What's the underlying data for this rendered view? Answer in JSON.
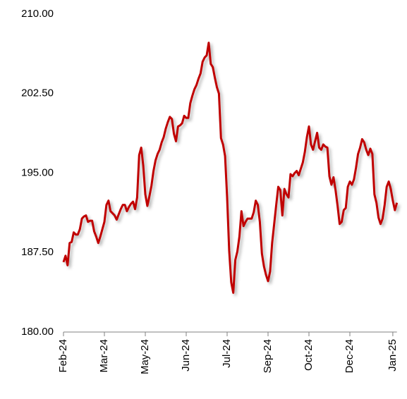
{
  "chart_data": {
    "type": "line",
    "categories": [
      "Feb-24",
      null,
      null,
      null,
      null,
      null,
      null,
      null,
      null,
      null,
      null,
      null,
      null,
      null,
      null,
      null,
      null,
      null,
      null,
      null,
      "Mar-24",
      null,
      null,
      null,
      null,
      null,
      null,
      null,
      null,
      null,
      null,
      null,
      null,
      null,
      null,
      null,
      null,
      null,
      null,
      null,
      "May-24",
      null,
      null,
      null,
      null,
      null,
      null,
      null,
      null,
      null,
      null,
      null,
      null,
      null,
      null,
      null,
      null,
      null,
      null,
      null,
      "Jun-24",
      null,
      null,
      null,
      null,
      null,
      null,
      null,
      null,
      null,
      null,
      null,
      null,
      null,
      null,
      null,
      null,
      null,
      null,
      null,
      "Jul-24",
      null,
      null,
      null,
      null,
      null,
      null,
      null,
      null,
      null,
      null,
      null,
      null,
      null,
      null,
      null,
      null,
      null,
      null,
      null,
      "Sep-24",
      null,
      null,
      null,
      null,
      null,
      null,
      null,
      null,
      null,
      null,
      null,
      null,
      null,
      null,
      null,
      null,
      null,
      null,
      null,
      "Oct-24",
      null,
      null,
      null,
      null,
      null,
      null,
      null,
      null,
      null,
      null,
      null,
      null,
      null,
      null,
      null,
      null,
      null,
      null,
      null,
      "Dec-24",
      null,
      null,
      null,
      null,
      null,
      null,
      null,
      null,
      null,
      null,
      null,
      null,
      null,
      null,
      null,
      null,
      null,
      null,
      null,
      null,
      "Jan-25",
      null,
      null
    ],
    "values": [
      186.6,
      187.2,
      186.3,
      188.4,
      188.5,
      189.4,
      189.2,
      189.2,
      189.7,
      190.7,
      190.9,
      191.0,
      190.4,
      190.5,
      190.5,
      189.5,
      189.0,
      188.4,
      189.0,
      189.7,
      190.4,
      192.0,
      192.4,
      191.4,
      191.2,
      191.0,
      190.6,
      191.1,
      191.6,
      192.0,
      192.0,
      191.4,
      191.8,
      192.1,
      192.3,
      191.6,
      192.7,
      196.7,
      197.4,
      195.7,
      193.0,
      191.9,
      192.8,
      193.8,
      195.2,
      196.2,
      196.8,
      197.2,
      197.9,
      198.4,
      199.2,
      199.8,
      200.3,
      200.1,
      198.7,
      198.0,
      199.4,
      199.5,
      199.7,
      200.4,
      200.2,
      200.2,
      201.6,
      202.3,
      202.9,
      203.3,
      203.9,
      204.4,
      205.5,
      205.9,
      206.1,
      207.3,
      205.3,
      205.0,
      204.0,
      203.1,
      202.5,
      198.3,
      197.7,
      196.6,
      192.7,
      187.7,
      184.7,
      183.7,
      186.8,
      187.6,
      189.0,
      191.4,
      190.0,
      190.4,
      190.7,
      190.7,
      190.7,
      191.3,
      192.4,
      192.0,
      190.4,
      187.4,
      186.2,
      185.4,
      184.8,
      185.7,
      188.4,
      190.2,
      192.0,
      193.7,
      193.4,
      191.0,
      193.5,
      193.0,
      192.7,
      194.9,
      194.7,
      195.0,
      195.2,
      194.8,
      195.4,
      196.0,
      197.0,
      198.4,
      199.4,
      197.7,
      197.2,
      198.0,
      198.8,
      197.4,
      197.2,
      197.7,
      197.5,
      197.4,
      194.7,
      193.9,
      194.6,
      193.4,
      191.9,
      190.2,
      190.4,
      191.5,
      191.7,
      193.7,
      194.2,
      193.9,
      194.4,
      195.5,
      196.8,
      197.4,
      198.2,
      197.9,
      197.2,
      196.7,
      197.3,
      196.8,
      193.0,
      192.2,
      190.8,
      190.2,
      190.7,
      192.0,
      193.7,
      194.2,
      193.5,
      192.4,
      191.5,
      192.2
    ],
    "color": "#c00000",
    "ylim": [
      180,
      210
    ],
    "yticks": [
      {
        "value": 180,
        "label": "180.00"
      },
      {
        "value": 187.5,
        "label": "187.50"
      },
      {
        "value": 195,
        "label": "195.00"
      },
      {
        "value": 202.5,
        "label": "202.50"
      },
      {
        "value": 210,
        "label": "210.00"
      }
    ]
  }
}
